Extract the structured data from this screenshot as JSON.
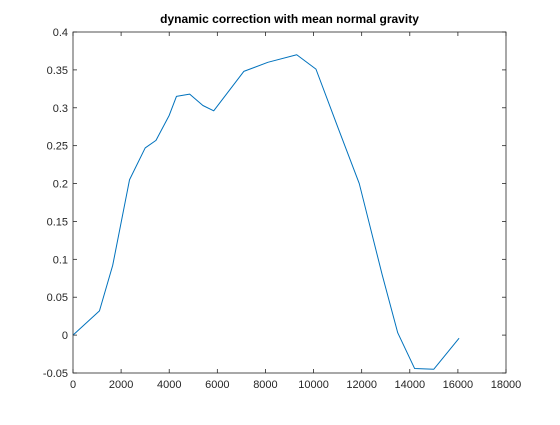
{
  "chart_data": {
    "type": "line",
    "title": "dynamic correction with mean normal gravity",
    "xlabel": "",
    "ylabel": "",
    "xlim": [
      0,
      18000
    ],
    "ylim": [
      -0.05,
      0.4
    ],
    "xticks": [
      0,
      2000,
      4000,
      6000,
      8000,
      10000,
      12000,
      14000,
      16000,
      18000
    ],
    "yticks": [
      -0.05,
      0,
      0.05,
      0.1,
      0.15,
      0.2,
      0.25,
      0.3,
      0.35,
      0.4
    ],
    "xtick_labels": [
      "0",
      "2000",
      "4000",
      "6000",
      "8000",
      "10000",
      "12000",
      "14000",
      "16000",
      "18000"
    ],
    "ytick_labels": [
      "-0.05",
      "0",
      "0.05",
      "0.1",
      "0.15",
      "0.2",
      "0.25",
      "0.3",
      "0.35",
      "0.4"
    ],
    "grid": false,
    "series": [
      {
        "color": "#0072BD",
        "x": [
          0,
          1100,
          1650,
          2350,
          3000,
          3450,
          4000,
          4300,
          4850,
          5400,
          5850,
          7100,
          8100,
          9300,
          10100,
          11000,
          11900,
          12850,
          13500,
          14200,
          15000,
          16050
        ],
        "y": [
          0.0,
          0.032,
          0.092,
          0.205,
          0.247,
          0.257,
          0.29,
          0.315,
          0.318,
          0.303,
          0.296,
          0.348,
          0.36,
          0.37,
          0.351,
          0.275,
          0.2,
          0.08,
          0.003,
          -0.044,
          -0.045,
          -0.004
        ]
      }
    ]
  }
}
